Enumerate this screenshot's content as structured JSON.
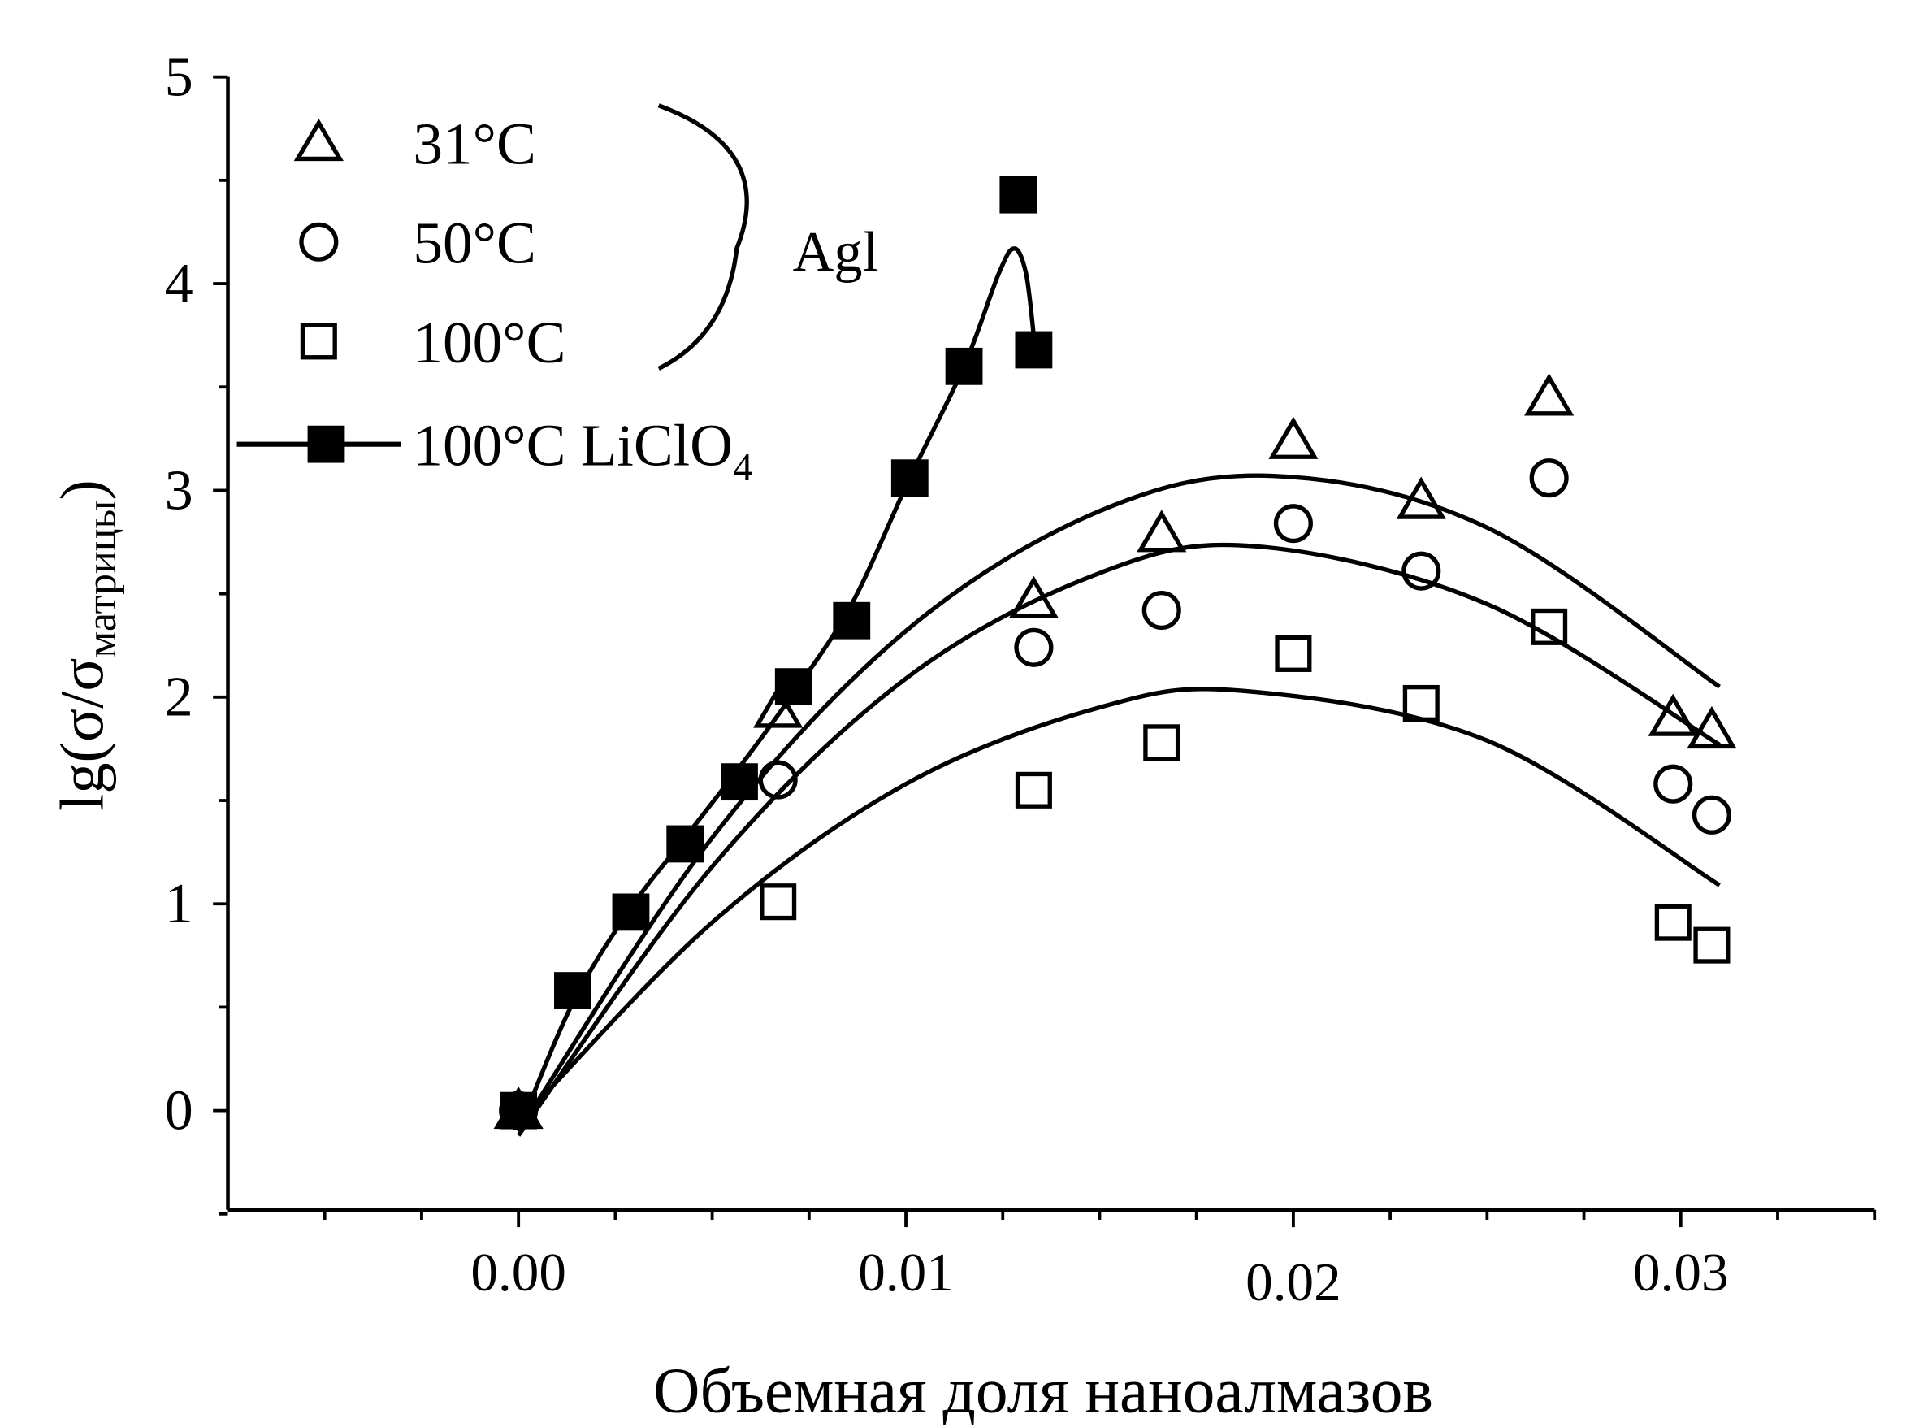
{
  "chart_data": {
    "type": "scatter",
    "xlabel": "Объемная доля наноалмазов",
    "ylabel_main": "lg(σ/σ",
    "ylabel_sub": "матрицы",
    "ylabel_close": ")",
    "xlim": [
      -0.0075,
      0.035
    ],
    "ylim": [
      -0.48,
      5
    ],
    "xticks": [
      0.0,
      0.01,
      0.02,
      0.03
    ],
    "xtick_labels": [
      "0.00",
      "0.01",
      "0.02",
      "0.03"
    ],
    "yticks": [
      0,
      1,
      2,
      3,
      4,
      5
    ],
    "ytick_labels": [
      "0",
      "1",
      "2",
      "3",
      "4",
      "5"
    ],
    "grid": false,
    "legend_position": "top-left",
    "bracket_label": "Agl",
    "series": [
      {
        "name": "31°C",
        "marker": "triangle-open",
        "x": [
          0,
          0.0067,
          0.0133,
          0.0166,
          0.02,
          0.0233,
          0.0266,
          0.0298,
          0.0308
        ],
        "y": [
          0,
          1.94,
          2.47,
          2.79,
          3.24,
          2.95,
          3.45,
          1.9,
          1.84
        ],
        "fit": [
          [
            0,
            -0.1
          ],
          [
            0.005,
            1.32
          ],
          [
            0.01,
            2.32
          ],
          [
            0.015,
            2.9
          ],
          [
            0.0195,
            3.07
          ],
          [
            0.025,
            2.82
          ],
          [
            0.031,
            2.05
          ]
        ]
      },
      {
        "name": "50°C",
        "marker": "circle-open",
        "x": [
          0,
          0.0067,
          0.0133,
          0.0166,
          0.02,
          0.0233,
          0.0266,
          0.0298,
          0.0308
        ],
        "y": [
          0,
          1.6,
          2.24,
          2.42,
          2.84,
          2.61,
          3.06,
          1.58,
          1.43
        ],
        "fit": [
          [
            0,
            -0.12
          ],
          [
            0.005,
            1.18
          ],
          [
            0.01,
            2.09
          ],
          [
            0.015,
            2.6
          ],
          [
            0.019,
            2.73
          ],
          [
            0.025,
            2.45
          ],
          [
            0.031,
            1.77
          ]
        ]
      },
      {
        "name": "100°C",
        "marker": "square-open",
        "x": [
          0,
          0.0067,
          0.0133,
          0.0166,
          0.02,
          0.0233,
          0.0266,
          0.0298,
          0.0308
        ],
        "y": [
          0,
          1.01,
          1.55,
          1.78,
          2.21,
          1.97,
          2.34,
          0.91,
          0.8
        ],
        "fit": [
          [
            0,
            -0.06
          ],
          [
            0.005,
            0.91
          ],
          [
            0.01,
            1.58
          ],
          [
            0.015,
            1.95
          ],
          [
            0.0187,
            2.03
          ],
          [
            0.025,
            1.79
          ],
          [
            0.031,
            1.09
          ]
        ]
      },
      {
        "name_main": "100°C LiClO",
        "name_sub": "4",
        "marker": "square-filled",
        "x": [
          0,
          0.0014,
          0.0029,
          0.0043,
          0.0057,
          0.0071,
          0.0086,
          0.0101,
          0.0115,
          0.0129,
          0.0133
        ],
        "y": [
          0,
          0.58,
          0.96,
          1.29,
          1.59,
          2.05,
          2.37,
          3.06,
          3.6,
          4.43,
          3.68
        ],
        "fit": [
          [
            0,
            -0.1
          ],
          [
            0.0014,
            0.52
          ],
          [
            0.0029,
            0.98
          ],
          [
            0.0043,
            1.32
          ],
          [
            0.0057,
            1.66
          ],
          [
            0.0071,
            2.02
          ],
          [
            0.0086,
            2.45
          ],
          [
            0.0101,
            3.06
          ],
          [
            0.0115,
            3.6
          ],
          [
            0.0124,
            4.05
          ],
          [
            0.0128,
            4.17
          ],
          [
            0.0131,
            4.05
          ],
          [
            0.0133,
            3.75
          ]
        ]
      }
    ]
  }
}
